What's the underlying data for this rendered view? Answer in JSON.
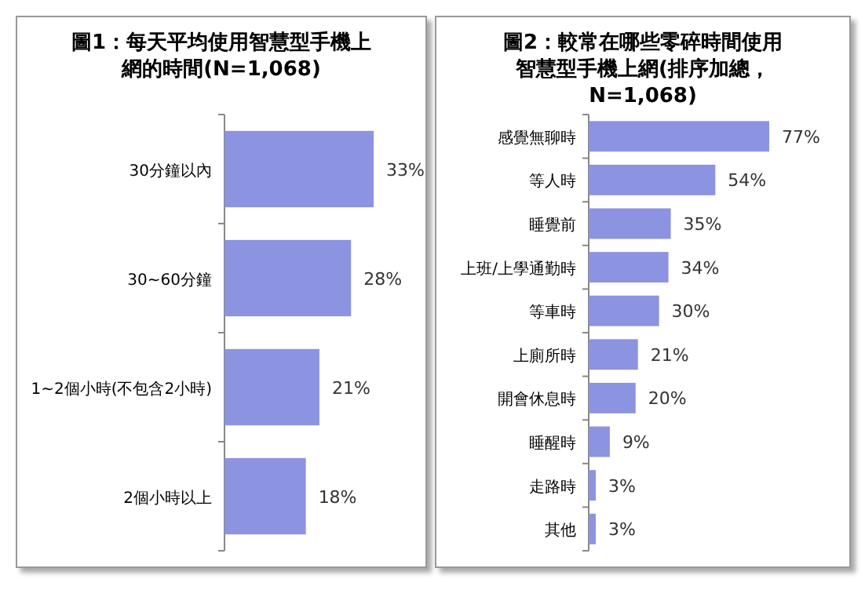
{
  "chart_data": [
    {
      "type": "bar",
      "orientation": "horizontal",
      "title": "圖1：每天平均使用智慧型手機上網的時間(N=1,068)",
      "categories": [
        "30分鐘以內",
        "30~60分鐘",
        "1~2個小時(不包含2小時)",
        "2個小時以上"
      ],
      "values": [
        33,
        28,
        21,
        18
      ],
      "value_labels": [
        "33%",
        "28%",
        "21%",
        "18%"
      ],
      "color": "#8c93e0"
    },
    {
      "type": "bar",
      "orientation": "horizontal",
      "title": "圖2：較常在哪些零碎時間使用智慧型手機上網(排序加總，N=1,068)",
      "categories": [
        "感覺無聊時",
        "等人時",
        "睡覺前",
        "上班/上學通勤時",
        "等車時",
        "上廁所時",
        "開會休息時",
        "睡醒時",
        "走路時",
        "其他"
      ],
      "values": [
        77,
        54,
        35,
        34,
        30,
        21,
        20,
        9,
        3,
        3
      ],
      "value_labels": [
        "77%",
        "54%",
        "35%",
        "34%",
        "30%",
        "21%",
        "20%",
        "9%",
        "3%",
        "3%"
      ],
      "color": "#8c93e0"
    }
  ]
}
